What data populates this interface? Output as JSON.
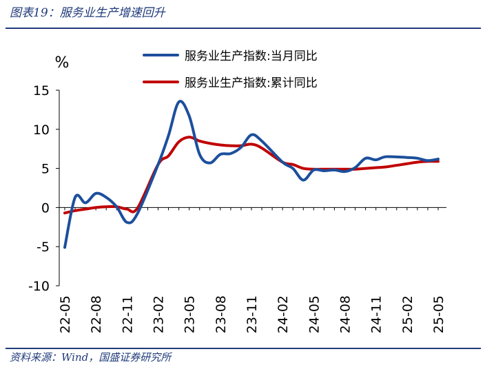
{
  "figure": {
    "title": "图表19：服务业生产增速回升",
    "source": "资料来源：Wind，国盛证券研究所"
  },
  "chart_data": {
    "type": "line",
    "unit_label": "%",
    "ylim": [
      -10,
      15
    ],
    "yticks": [
      -10,
      -5,
      0,
      5,
      10,
      15
    ],
    "x": [
      "22-05",
      "22-06",
      "22-07",
      "22-08",
      "22-09",
      "22-10",
      "22-11",
      "22-12",
      "23-01",
      "23-02",
      "23-03",
      "23-04",
      "23-05",
      "23-06",
      "23-07",
      "23-08",
      "23-09",
      "23-10",
      "23-11",
      "23-12",
      "24-01",
      "24-02",
      "24-03",
      "24-04",
      "24-05",
      "24-06",
      "24-07",
      "24-08",
      "24-09",
      "24-10",
      "24-11",
      "24-12",
      "25-01",
      "25-02",
      "25-03",
      "25-04",
      "25-05"
    ],
    "xticklabels": [
      "22-05",
      "22-08",
      "22-11",
      "23-02",
      "23-05",
      "23-08",
      "23-11",
      "24-02",
      "24-05",
      "24-08",
      "24-11",
      "25-02",
      "25-05"
    ],
    "legend_position": "top",
    "series": [
      {
        "name": "服务业生产指数:当月同比",
        "color": "#1c4f9c",
        "values": [
          -5.1,
          1.3,
          0.6,
          1.8,
          1.3,
          0.1,
          -1.9,
          -0.8,
          null,
          5.5,
          9.2,
          13.5,
          11.7,
          6.8,
          5.7,
          6.8,
          6.9,
          7.7,
          9.3,
          8.5,
          null,
          5.8,
          5.0,
          3.5,
          4.8,
          4.7,
          4.8,
          4.6,
          5.1,
          6.3,
          6.1,
          6.5,
          null,
          6.4,
          6.3,
          6.0,
          6.2
        ]
      },
      {
        "name": "服务业生产指数:累计同比",
        "color": "#c00000",
        "values": [
          -0.7,
          -0.4,
          -0.2,
          0.0,
          0.1,
          0.1,
          -0.2,
          -0.1,
          null,
          5.5,
          6.6,
          8.4,
          9.0,
          8.5,
          8.2,
          8.0,
          7.9,
          7.9,
          8.1,
          7.6,
          null,
          5.8,
          5.5,
          5.0,
          4.9,
          4.9,
          4.9,
          4.9,
          4.9,
          5.0,
          5.1,
          5.2,
          null,
          5.6,
          5.8,
          5.9,
          5.9
        ]
      }
    ]
  }
}
